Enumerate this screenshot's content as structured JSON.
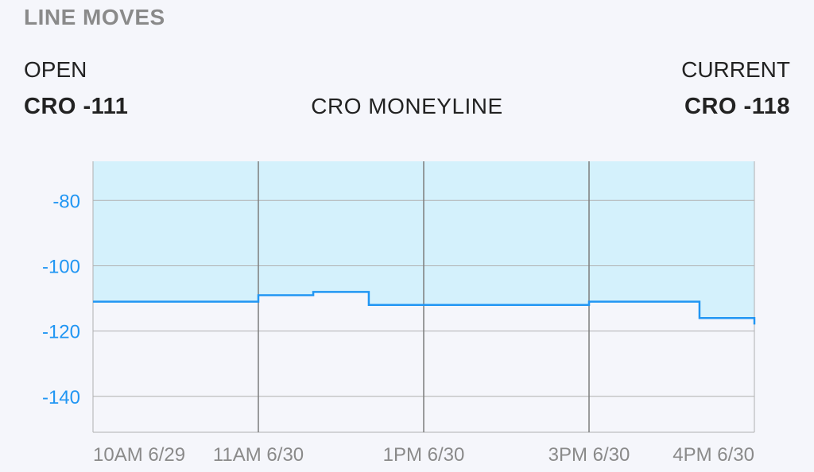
{
  "header": {
    "title": "LINE MOVES",
    "open_label": "OPEN",
    "open_value": "CRO -111",
    "market": "CRO MONEYLINE",
    "current_label": "CURRENT",
    "current_value": "CRO -118"
  },
  "colors": {
    "line": "#2196f3",
    "fill": "#d4f1fc",
    "grid": "#b0b0b0",
    "ytick": "#2196f3",
    "xtick": "#8a8a8a"
  },
  "chart_data": {
    "type": "area",
    "step": true,
    "ylim": [
      -151,
      -68
    ],
    "yticks": [
      -80,
      -100,
      -120,
      -140
    ],
    "xticks": [
      "10AM 6/29",
      "11AM 6/30",
      "1PM 6/30",
      "3PM 6/30",
      "4PM 6/30"
    ],
    "grid": true,
    "series": [
      {
        "values": [
          -111,
          -109,
          -108,
          -112,
          -112,
          -111,
          -111,
          -116,
          -114,
          -118
        ]
      }
    ]
  }
}
